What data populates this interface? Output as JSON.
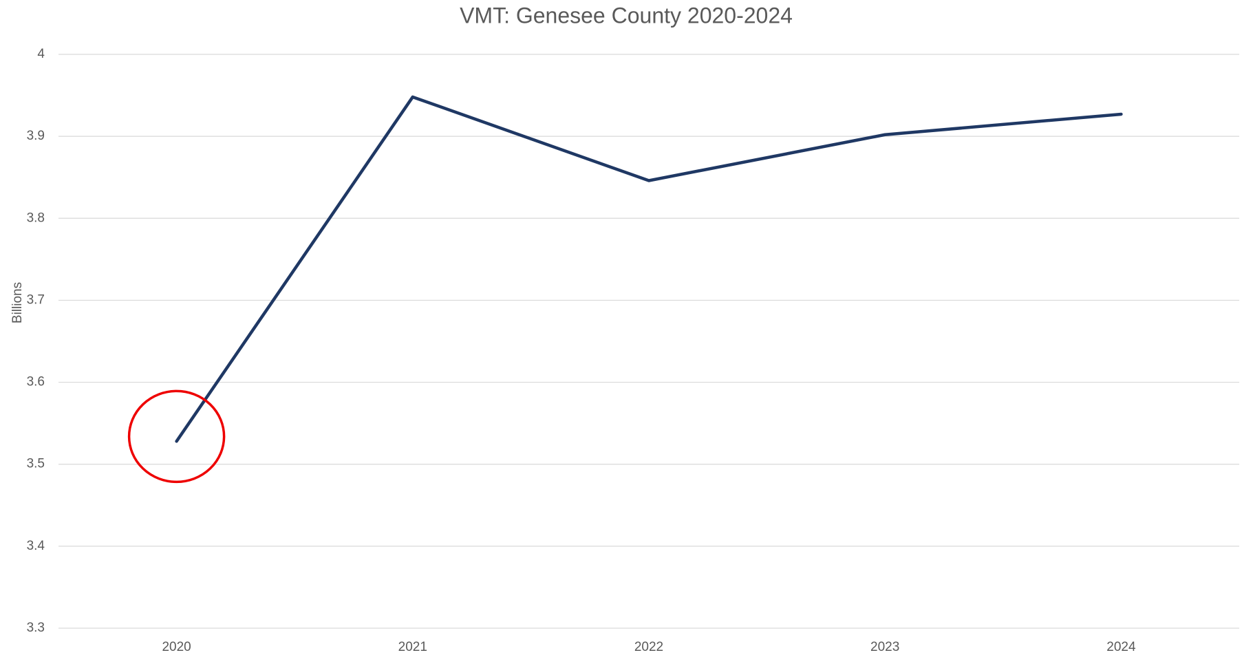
{
  "chart_data": {
    "type": "line",
    "title": "VMT: Genesee County 2020-2024",
    "y_label": "Billions",
    "categories": [
      "2020",
      "2021",
      "2022",
      "2023",
      "2024"
    ],
    "series": [
      {
        "name": "VMT",
        "color": "#1f3864",
        "values": [
          3.528,
          3.948,
          3.846,
          3.902,
          3.927
        ]
      }
    ],
    "ylim": [
      3.3,
      4
    ],
    "yticks": [
      3.3,
      3.4,
      3.5,
      3.6,
      3.7,
      3.8,
      3.9,
      4
    ],
    "grid": true
  }
}
